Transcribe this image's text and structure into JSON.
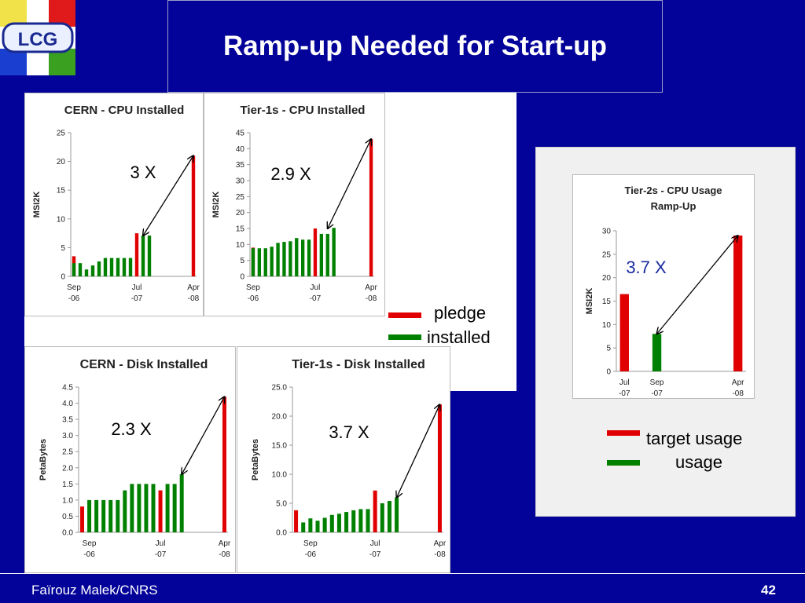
{
  "slide": {
    "title": "Ramp-up Needed for Start-up",
    "logo_text": "LCG",
    "author": "Faïrouz Malek/CNRS",
    "page_number": "42"
  },
  "legend_pledge": [
    {
      "label": "pledge",
      "color": "#e00000"
    },
    {
      "label": "installed",
      "color": "#008000"
    }
  ],
  "legend_usage": [
    {
      "label": "target usage",
      "color": "#e00000"
    },
    {
      "label": "usage",
      "color": "#008000"
    }
  ],
  "chart_data": [
    {
      "id": "cern-cpu",
      "type": "bar",
      "title": "CERN - CPU Installed",
      "ylabel": "MSI2K",
      "ylim": [
        0,
        25
      ],
      "yticks": [
        "0",
        "5",
        "10",
        "15",
        "20",
        "25"
      ],
      "xtick_labels": [
        {
          "line1": "Sep",
          "line2": "-06",
          "index": 0
        },
        {
          "line1": "Jul",
          "line2": "-07",
          "index": 10
        },
        {
          "line1": "Apr",
          "line2": "-08",
          "index": 19
        }
      ],
      "categories": 20,
      "series": [
        {
          "name": "pledge",
          "color": "#e00000",
          "values": [
            3.5,
            null,
            null,
            null,
            null,
            null,
            null,
            null,
            null,
            null,
            7.5,
            null,
            null,
            null,
            null,
            null,
            null,
            null,
            null,
            21
          ]
        },
        {
          "name": "installed",
          "color": "#008000",
          "values": [
            2.3,
            2.3,
            1.2,
            1.9,
            2.6,
            3.2,
            3.2,
            3.2,
            3.2,
            3.2,
            null,
            7.1,
            7.1,
            null,
            null,
            null,
            null,
            null,
            null,
            null
          ]
        }
      ],
      "annotation": {
        "text": "3 X",
        "from_index": 11,
        "from_value": 7.1,
        "to_index": 19,
        "to_value": 21
      }
    },
    {
      "id": "tier1-cpu",
      "type": "bar",
      "title": "Tier-1s - CPU Installed",
      "ylabel": "MSI2K",
      "ylim": [
        0,
        45
      ],
      "yticks": [
        "0",
        "5",
        "10",
        "15",
        "20",
        "25",
        "30",
        "35",
        "40",
        "45"
      ],
      "xtick_labels": [
        {
          "line1": "Sep",
          "line2": "-06",
          "index": 0
        },
        {
          "line1": "Jul",
          "line2": "-07",
          "index": 10
        },
        {
          "line1": "Apr",
          "line2": "-08",
          "index": 19
        }
      ],
      "categories": 20,
      "series": [
        {
          "name": "pledge",
          "color": "#e00000",
          "values": [
            9,
            null,
            null,
            null,
            null,
            null,
            null,
            null,
            null,
            null,
            15,
            null,
            null,
            null,
            null,
            null,
            null,
            null,
            null,
            43
          ]
        },
        {
          "name": "installed",
          "color": "#008000",
          "values": [
            8.8,
            8.8,
            8.8,
            9.3,
            10.5,
            10.8,
            11,
            12,
            11.5,
            11.5,
            null,
            13.3,
            13.3,
            15.2,
            null,
            null,
            null,
            null,
            null,
            null
          ]
        }
      ],
      "annotation": {
        "text": "2.9 X",
        "from_index": 12,
        "from_value": 15,
        "to_index": 19,
        "to_value": 43
      }
    },
    {
      "id": "cern-disk",
      "type": "bar",
      "title": "CERN - Disk Installed",
      "ylabel": "PetaBytes",
      "ylim": [
        0,
        4.5
      ],
      "yticks": [
        "0.0",
        "0.5",
        "1.0",
        "1.5",
        "2.0",
        "2.5",
        "3.0",
        "3.5",
        "4.0",
        "4.5"
      ],
      "xtick_labels": [
        {
          "line1": "Sep",
          "line2": "-06",
          "index": 1
        },
        {
          "line1": "Jul",
          "line2": "-07",
          "index": 11
        },
        {
          "line1": "Apr",
          "line2": "-08",
          "index": 20
        }
      ],
      "categories": 21,
      "series": [
        {
          "name": "pledge",
          "color": "#e00000",
          "values": [
            0.8,
            null,
            null,
            null,
            null,
            null,
            null,
            null,
            null,
            null,
            null,
            1.3,
            null,
            null,
            null,
            null,
            null,
            null,
            null,
            null,
            4.2
          ]
        },
        {
          "name": "installed",
          "color": "#008000",
          "values": [
            null,
            1.0,
            1.0,
            1.0,
            1.0,
            1.0,
            1.3,
            1.5,
            1.5,
            1.5,
            1.5,
            null,
            1.5,
            1.5,
            1.8,
            null,
            null,
            null,
            null,
            null,
            null
          ]
        }
      ],
      "annotation": {
        "text": "2.3 X",
        "from_index": 14,
        "from_value": 1.8,
        "to_index": 20,
        "to_value": 4.2
      }
    },
    {
      "id": "tier1-disk",
      "type": "bar",
      "title": "Tier-1s - Disk Installed",
      "ylabel": "PetaBytes",
      "ylim": [
        0,
        25
      ],
      "yticks": [
        "0.0",
        "5.0",
        "10.0",
        "15.0",
        "20.0",
        "25.0"
      ],
      "xtick_labels": [
        {
          "line1": "Sep",
          "line2": "-06",
          "index": 2
        },
        {
          "line1": "Jul",
          "line2": "-07",
          "index": 11
        },
        {
          "line1": "Apr",
          "line2": "-08",
          "index": 20
        }
      ],
      "categories": 21,
      "series": [
        {
          "name": "pledge",
          "color": "#e00000",
          "values": [
            3.8,
            null,
            null,
            null,
            null,
            null,
            null,
            null,
            null,
            null,
            null,
            7.2,
            null,
            null,
            null,
            null,
            null,
            null,
            null,
            null,
            22
          ]
        },
        {
          "name": "installed",
          "color": "#008000",
          "values": [
            null,
            1.7,
            2.4,
            2.0,
            2.5,
            3.0,
            3.2,
            3.5,
            3.8,
            4.0,
            4.0,
            null,
            5.0,
            5.4,
            6.0,
            null,
            null,
            null,
            null,
            null,
            null
          ]
        }
      ],
      "annotation": {
        "text": "3.7 X",
        "from_index": 14,
        "from_value": 6,
        "to_index": 20,
        "to_value": 22
      }
    },
    {
      "id": "tier2-usage",
      "type": "bar",
      "title": "Tier-2s - CPU Usage Ramp-Up",
      "title_line1": "Tier-2s - CPU Usage",
      "title_line2": "Ramp-Up",
      "ylabel": "MSI2K",
      "ylim": [
        0,
        30
      ],
      "yticks": [
        "0",
        "5",
        "10",
        "15",
        "20",
        "25",
        "30"
      ],
      "xtick_labels": [
        {
          "line1": "Jul",
          "line2": "-07",
          "index": 0
        },
        {
          "line1": "Sep",
          "line2": "-07",
          "index": 2
        },
        {
          "line1": "Apr",
          "line2": "-08",
          "index": 7
        }
      ],
      "categories": 8,
      "series": [
        {
          "name": "target usage",
          "color": "#e00000",
          "values": [
            16.5,
            null,
            null,
            null,
            null,
            null,
            null,
            29
          ]
        },
        {
          "name": "usage",
          "color": "#008000",
          "values": [
            null,
            null,
            8,
            null,
            null,
            null,
            null,
            null
          ]
        }
      ],
      "annotation": {
        "text": "3.7 X",
        "from_index": 2,
        "from_value": 8,
        "to_index": 7,
        "to_value": 29
      }
    }
  ]
}
